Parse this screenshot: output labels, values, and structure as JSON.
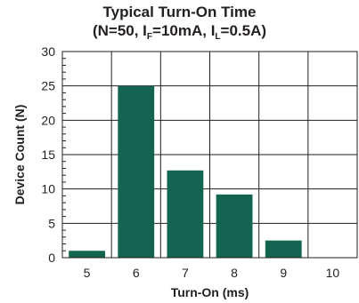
{
  "chart_data": {
    "type": "bar",
    "title": "Typical Turn-On Time",
    "subtitle": {
      "prefix": "(N=50, I",
      "sub1": "F",
      "mid": "=10mA, I",
      "sub2": "L",
      "suffix": "=0.5A)"
    },
    "xlabel": "Turn-On (ms)",
    "ylabel": "Device Count (N)",
    "categories": [
      "5",
      "6",
      "7",
      "8",
      "9",
      "10"
    ],
    "values": [
      1,
      25,
      12.7,
      9.2,
      2.5,
      0
    ],
    "ylim": [
      0,
      30
    ],
    "yticks": [
      "0",
      "5",
      "10",
      "15",
      "20",
      "25",
      "30"
    ],
    "grid": true,
    "bar_color": "#13654f"
  }
}
